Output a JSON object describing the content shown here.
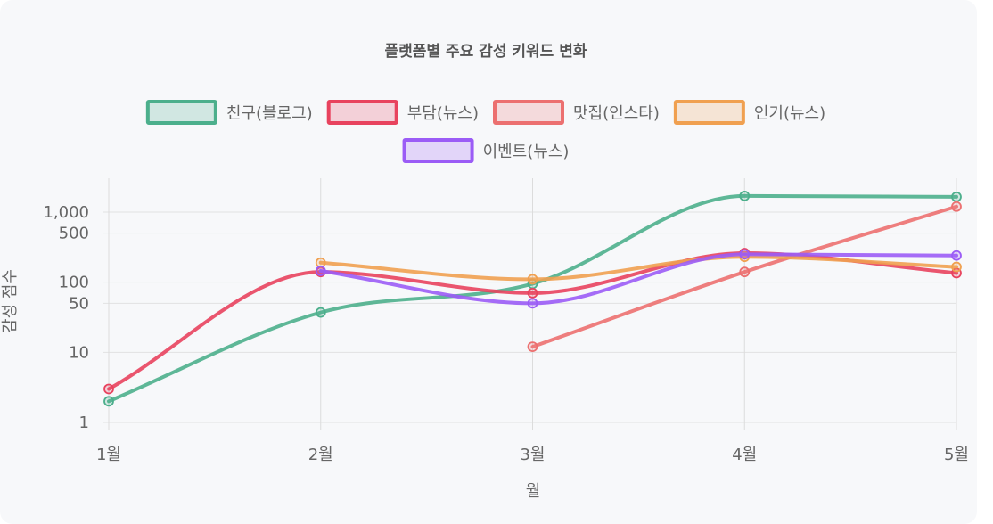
{
  "chart_data": {
    "type": "line",
    "title": "플랫폼별 주요 감성 키워드 변화",
    "xlabel": "월",
    "ylabel": "감성 점수",
    "categories": [
      "1월",
      "2월",
      "3월",
      "4월",
      "5월"
    ],
    "yscale": "log",
    "ylim": [
      0.6,
      3000
    ],
    "yticks": [
      {
        "value": 1,
        "label": "1"
      },
      {
        "value": 10,
        "label": "10"
      },
      {
        "value": 50,
        "label": "50"
      },
      {
        "value": 100,
        "label": "100"
      },
      {
        "value": 500,
        "label": "500"
      },
      {
        "value": 1000,
        "label": "1,000"
      }
    ],
    "grid": true,
    "legend_position": "top",
    "series": [
      {
        "name": "친구(블로그)",
        "color": "#4caf8c",
        "values": [
          2,
          37,
          95,
          1700,
          1650
        ]
      },
      {
        "name": "부담(뉴스)",
        "color": "#e8435e",
        "values": [
          3,
          140,
          70,
          260,
          135
        ]
      },
      {
        "name": "맛집(인스타)",
        "color": "#ec7070",
        "values": [
          null,
          null,
          12,
          140,
          1200
        ]
      },
      {
        "name": "인기(뉴스)",
        "color": "#f0a050",
        "values": [
          null,
          190,
          110,
          230,
          165
        ]
      },
      {
        "name": "이벤트(뉴스)",
        "color": "#9b5cf6",
        "values": [
          null,
          145,
          50,
          250,
          240
        ]
      }
    ]
  }
}
